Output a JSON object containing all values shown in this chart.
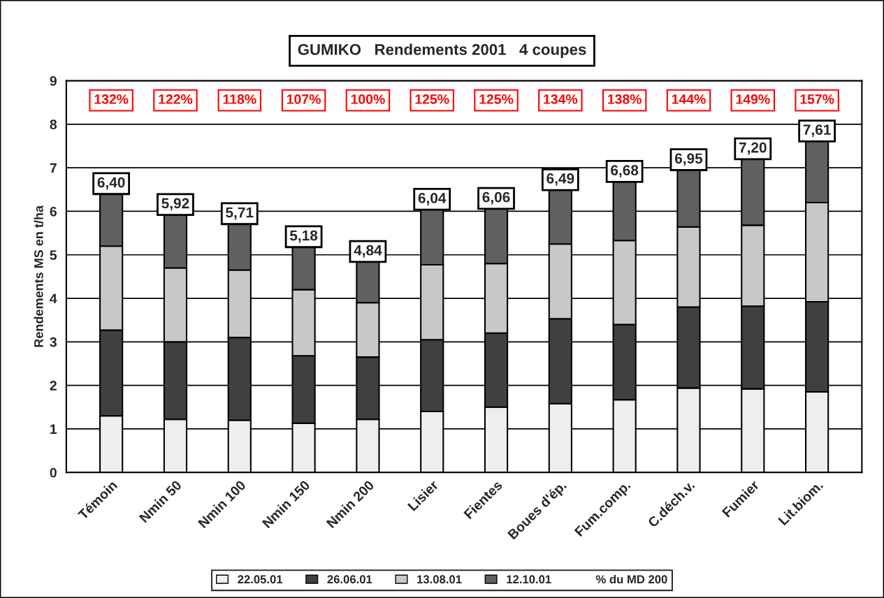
{
  "chart_data": {
    "type": "bar",
    "title": "GUMIKO   Rendements 2001   4 coupes",
    "ylabel": "Rendements MS en t/ha",
    "categories": [
      "Témoin",
      "Nmin 50",
      "Nmin 100",
      "Nmin 150",
      "Nmin 200",
      "Lisier",
      "Fientes",
      "Boues d'ép.",
      "Fum.comp.",
      "C.déch.v.",
      "Fumier",
      "Lit.biom."
    ],
    "stacked": true,
    "series": [
      {
        "name": "22.05.01",
        "color": "#eeeeee",
        "values": [
          1.3,
          1.22,
          1.2,
          1.13,
          1.22,
          1.4,
          1.5,
          1.58,
          1.67,
          1.94,
          1.92,
          1.85
        ]
      },
      {
        "name": "26.06.01",
        "color": "#404040",
        "values": [
          1.97,
          1.78,
          1.9,
          1.55,
          1.43,
          1.65,
          1.7,
          1.95,
          1.73,
          1.86,
          1.9,
          2.07
        ]
      },
      {
        "name": "13.08.01",
        "color": "#c8c8c8",
        "values": [
          1.93,
          1.7,
          1.55,
          1.52,
          1.25,
          1.72,
          1.6,
          1.72,
          1.93,
          1.84,
          1.86,
          2.28
        ]
      },
      {
        "name": "12.10.01",
        "color": "#606060",
        "values": [
          1.2,
          1.22,
          1.06,
          0.98,
          0.94,
          1.27,
          1.26,
          1.24,
          1.35,
          1.31,
          1.52,
          1.41
        ]
      }
    ],
    "totals": [
      "6,40",
      "5,92",
      "5,71",
      "5,18",
      "4,84",
      "6,04",
      "6,06",
      "6,49",
      "6,68",
      "6,95",
      "7,20",
      "7,61"
    ],
    "legend_title": "% du MD 200",
    "annotations": [
      "132%",
      "122%",
      "118%",
      "107%",
      "100%",
      "125%",
      "125%",
      "134%",
      "138%",
      "144%",
      "149%",
      "157%"
    ],
    "ylim": [
      0,
      9
    ],
    "yticks": [
      0,
      1,
      2,
      3,
      4,
      5,
      6,
      7,
      8,
      9
    ],
    "grid": "y",
    "legend": "bottom"
  }
}
